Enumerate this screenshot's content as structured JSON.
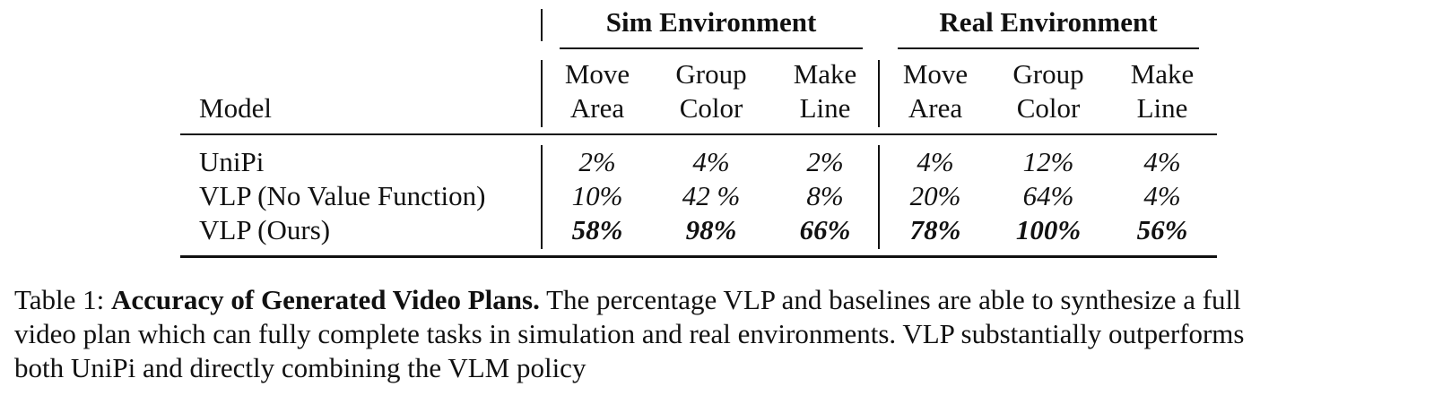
{
  "table": {
    "group_headers": {
      "sim": "Sim Environment",
      "real": "Real Environment"
    },
    "model_header": "Model",
    "subheaders": {
      "sim_move": [
        "Move",
        "Area"
      ],
      "sim_group": [
        "Group",
        "Color"
      ],
      "sim_line": [
        "Make",
        "Line"
      ],
      "real_move": [
        "Move",
        "Area"
      ],
      "real_group": [
        "Group",
        "Color"
      ],
      "real_line": [
        "Make",
        "Line"
      ]
    },
    "rows": [
      {
        "model": "UniPi",
        "sim": [
          "2%",
          "4%",
          "2%"
        ],
        "real": [
          "4%",
          "12%",
          "4%"
        ]
      },
      {
        "model": "VLP (No Value Function)",
        "sim": [
          "10%",
          "42 %",
          "8%"
        ],
        "real": [
          "20%",
          "64%",
          "4%"
        ]
      },
      {
        "model": "VLP (Ours)",
        "sim": [
          "58%",
          "98%",
          "66%"
        ],
        "real": [
          "78%",
          "100%",
          "56%"
        ]
      }
    ]
  },
  "caption": {
    "label": "Table 1:",
    "title": "Accuracy of Generated Video Plans.",
    "line1_rest": "The percentage VLP and baselines are able to synthesize a full",
    "line2": "video plan which can fully complete tasks in simulation and real environments. VLP substantially outperforms",
    "line3": "both UniPi and directly combining the VLM policy"
  }
}
